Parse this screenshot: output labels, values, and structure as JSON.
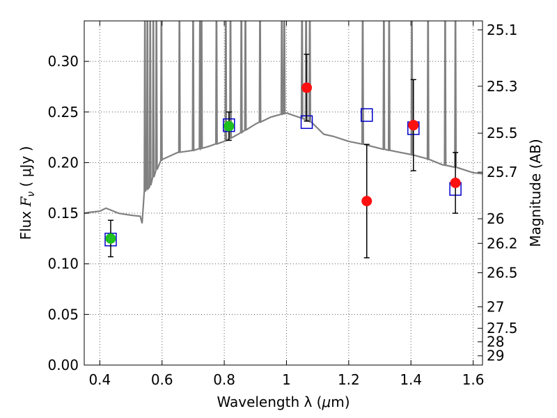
{
  "chart_data": {
    "type": "scatter",
    "xlabel_main": "Wavelength  λ (",
    "xlabel_unit": "μ",
    "xlabel_end": "m)",
    "ylabel_main": "Flux  ",
    "ylabel_sym": "F",
    "ylabel_sub": "ν",
    "ylabel_end": "  ( μJy )",
    "y2label": "Magnitude (AB)",
    "xlim": [
      0.35,
      1.63
    ],
    "ylim": [
      0.0,
      0.34
    ],
    "grid": true,
    "x_ticks": [
      {
        "value": 0.4,
        "label": "0.4"
      },
      {
        "value": 0.6,
        "label": "0.6"
      },
      {
        "value": 0.8,
        "label": "0.8"
      },
      {
        "value": 1.0,
        "label": "1"
      },
      {
        "value": 1.2,
        "label": "1.2"
      },
      {
        "value": 1.4,
        "label": "1.4"
      },
      {
        "value": 1.6,
        "label": "1.6"
      }
    ],
    "y_ticks": [
      {
        "value": 0.0,
        "label": "0.00"
      },
      {
        "value": 0.05,
        "label": "0.05"
      },
      {
        "value": 0.1,
        "label": "0.10"
      },
      {
        "value": 0.15,
        "label": "0.15"
      },
      {
        "value": 0.2,
        "label": "0.20"
      },
      {
        "value": 0.25,
        "label": "0.25"
      },
      {
        "value": 0.3,
        "label": "0.30"
      }
    ],
    "y2_ticks": [
      {
        "mag": 25.1,
        "label": "25.1"
      },
      {
        "mag": 25.3,
        "label": "25.3"
      },
      {
        "mag": 25.5,
        "label": "25.5"
      },
      {
        "mag": 25.7,
        "label": "25.7"
      },
      {
        "mag": 26.0,
        "label": "26"
      },
      {
        "mag": 26.2,
        "label": "26.2"
      },
      {
        "mag": 26.5,
        "label": "26.5"
      },
      {
        "mag": 27.0,
        "label": "27"
      },
      {
        "mag": 27.5,
        "label": "27.5"
      },
      {
        "mag": 28.0,
        "label": "28"
      },
      {
        "mag": 29.0,
        "label": "29"
      }
    ],
    "colors": {
      "spectrum": "#808080",
      "model": "#0000cc",
      "green": "#1fc01f",
      "red": "#ff1010",
      "errorbar": "#000000",
      "grid": "#555555"
    },
    "series": [
      {
        "name": "model spectrum",
        "kind": "line",
        "continuum": [
          [
            0.35,
            0.15
          ],
          [
            0.37,
            0.151
          ],
          [
            0.4,
            0.152
          ],
          [
            0.42,
            0.155
          ],
          [
            0.46,
            0.15
          ],
          [
            0.5,
            0.148
          ],
          [
            0.53,
            0.147
          ],
          [
            0.536,
            0.14
          ],
          [
            0.545,
            0.172
          ],
          [
            0.56,
            0.176
          ],
          [
            0.58,
            0.192
          ],
          [
            0.6,
            0.203
          ],
          [
            0.65,
            0.21
          ],
          [
            0.7,
            0.212
          ],
          [
            0.75,
            0.216
          ],
          [
            0.8,
            0.221
          ],
          [
            0.85,
            0.229
          ],
          [
            0.9,
            0.238
          ],
          [
            0.95,
            0.245
          ],
          [
            1.0,
            0.249
          ],
          [
            1.05,
            0.244
          ],
          [
            1.08,
            0.24
          ],
          [
            1.12,
            0.228
          ],
          [
            1.15,
            0.226
          ],
          [
            1.2,
            0.221
          ],
          [
            1.25,
            0.218
          ],
          [
            1.3,
            0.214
          ],
          [
            1.35,
            0.211
          ],
          [
            1.4,
            0.208
          ],
          [
            1.45,
            0.204
          ],
          [
            1.5,
            0.198
          ],
          [
            1.55,
            0.195
          ],
          [
            1.58,
            0.192
          ],
          [
            1.6,
            0.19
          ],
          [
            1.63,
            0.189
          ]
        ],
        "emission_lines": [
          0.545,
          0.553,
          0.562,
          0.572,
          0.582,
          0.598,
          0.656,
          0.7,
          0.722,
          0.727,
          0.775,
          0.805,
          0.82,
          0.855,
          0.868,
          0.915,
          0.985,
          0.993,
          1.05,
          1.063,
          1.075,
          1.245,
          1.313,
          1.33,
          1.403,
          1.455,
          1.51,
          1.543
        ]
      },
      {
        "name": "model photometry",
        "kind": "open-square",
        "points": [
          {
            "x": 0.435,
            "y": 0.124
          },
          {
            "x": 0.815,
            "y": 0.237
          },
          {
            "x": 1.065,
            "y": 0.24
          },
          {
            "x": 1.258,
            "y": 0.247
          },
          {
            "x": 1.408,
            "y": 0.234
          },
          {
            "x": 1.543,
            "y": 0.174
          }
        ]
      },
      {
        "name": "observed (optical)",
        "kind": "filled-circle-green",
        "points": [
          {
            "x": 0.435,
            "y": 0.125,
            "yerr": 0.018
          },
          {
            "x": 0.815,
            "y": 0.236,
            "yerr": 0.014
          }
        ]
      },
      {
        "name": "observed (near-IR)",
        "kind": "filled-circle-red",
        "points": [
          {
            "x": 1.065,
            "y": 0.274,
            "yerr": 0.033
          },
          {
            "x": 1.258,
            "y": 0.162,
            "yerr": 0.056
          },
          {
            "x": 1.408,
            "y": 0.237,
            "yerr": 0.045
          },
          {
            "x": 1.543,
            "y": 0.18,
            "yerr": 0.03
          }
        ]
      }
    ]
  }
}
